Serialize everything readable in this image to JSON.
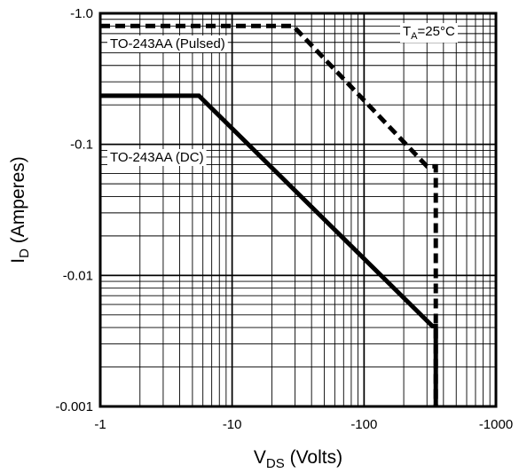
{
  "chart_data": {
    "type": "line",
    "x_scale": "log",
    "y_scale": "log",
    "xlim": [
      -1,
      -1000
    ],
    "ylim": [
      -0.001,
      -1.0
    ],
    "grid": true,
    "x_ticks": [
      {
        "value": -1,
        "label": "-1"
      },
      {
        "value": -10,
        "label": "-10"
      },
      {
        "value": -100,
        "label": "-100"
      },
      {
        "value": -1000,
        "label": "-1000"
      }
    ],
    "y_ticks": [
      {
        "value": -1.0,
        "label": "-1.0"
      },
      {
        "value": -0.1,
        "label": "-0.1"
      },
      {
        "value": -0.01,
        "label": "-0.01"
      },
      {
        "value": -0.001,
        "label": "-0.001"
      }
    ],
    "xlabel": {
      "main": "V",
      "sub": "DS",
      "rest": " (Volts)"
    },
    "ylabel": {
      "main": "I",
      "sub": "D",
      "rest": " (Amperes)"
    },
    "condition": {
      "main": "T",
      "sub": "A",
      "rest": "=25°C"
    },
    "series": [
      {
        "name": "TO-243AA (Pulsed)",
        "style": "dashed",
        "points": [
          [
            -1,
            -0.8
          ],
          [
            -29,
            -0.8
          ],
          [
            -300,
            -0.068
          ],
          [
            -350,
            -0.068
          ],
          [
            -350,
            -0.001
          ]
        ]
      },
      {
        "name": "TO-243AA (DC)",
        "style": "solid",
        "points": [
          [
            -1,
            -0.235
          ],
          [
            -5.6,
            -0.235
          ],
          [
            -330,
            -0.0041
          ],
          [
            -350,
            -0.0041
          ],
          [
            -350,
            -0.001
          ]
        ]
      }
    ]
  }
}
